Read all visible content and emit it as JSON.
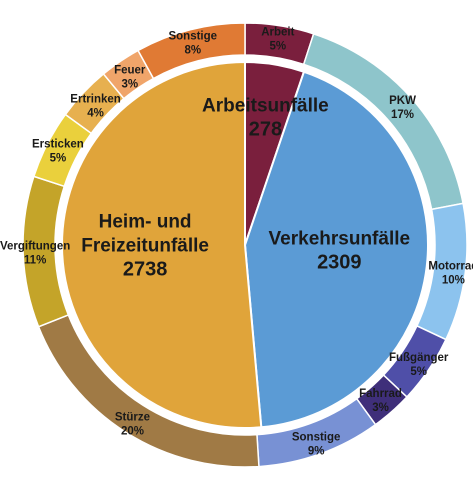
{
  "chart_data": {
    "type": "pie",
    "subtype": "nested-donut",
    "inner": {
      "slices": [
        {
          "label": "Arbeitsunfälle",
          "value": 278,
          "color": "#7a1f3d"
        },
        {
          "label": "Verkehrsunfälle",
          "value": 2309,
          "color": "#5b9bd5"
        },
        {
          "label": "Heim- und Freizeitunfälle",
          "value": 2738,
          "color": "#e0a43a"
        }
      ]
    },
    "outer": {
      "slices": [
        {
          "label": "Arbeit",
          "value": 5,
          "display": "5%",
          "color": "#7a1f3d"
        },
        {
          "label": "PKW",
          "value": 17,
          "display": "17%",
          "color": "#8ec5cb"
        },
        {
          "label": "Motorrad",
          "value": 10,
          "display": "10%",
          "color": "#8cc3ee"
        },
        {
          "label": "Fußgänger",
          "value": 5,
          "display": "5%",
          "color": "#4f4fa8"
        },
        {
          "label": "Fahrrad",
          "value": 3,
          "display": "3%",
          "color": "#3f2f7a"
        },
        {
          "label": "Sonstige",
          "value": 9,
          "display": "9%",
          "color": "#7891d4"
        },
        {
          "label": "Stürze",
          "value": 20,
          "display": "20%",
          "color": "#a07a45"
        },
        {
          "label": "Vergiftungen",
          "value": 11,
          "display": "11%",
          "color": "#c4a429"
        },
        {
          "label": "Ersticken",
          "value": 5,
          "display": "5%",
          "color": "#ead03c"
        },
        {
          "label": "Ertrinken",
          "value": 4,
          "display": "4%",
          "color": "#e7b04f"
        },
        {
          "label": "Feuer",
          "value": 3,
          "display": "3%",
          "color": "#f0a56a"
        },
        {
          "label": "Sonstige",
          "value": 8,
          "display": "8%",
          "color": "#e07a34"
        }
      ]
    }
  }
}
